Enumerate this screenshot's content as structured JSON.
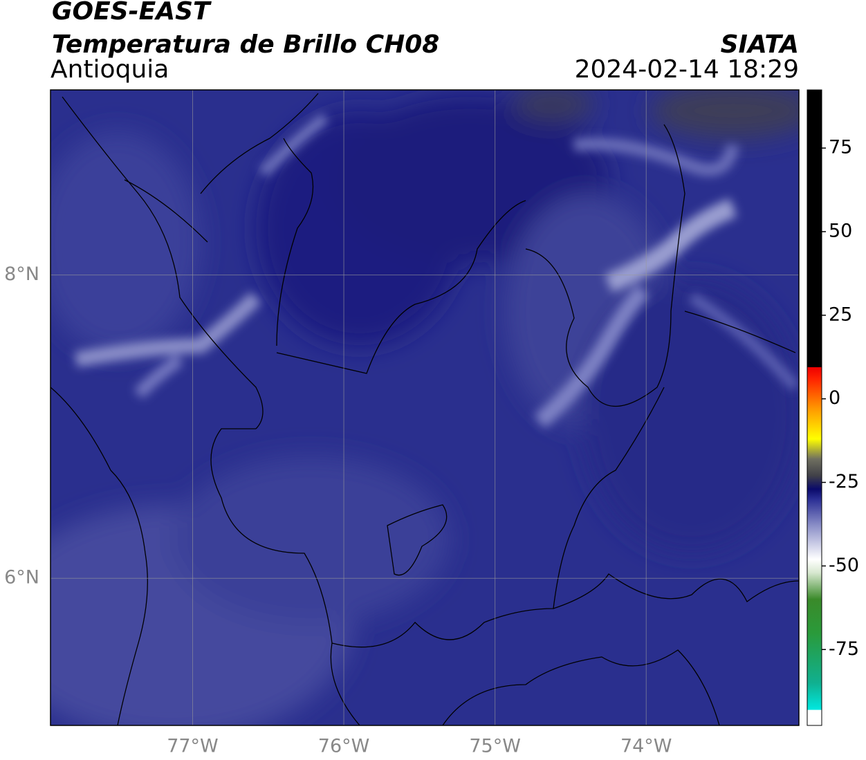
{
  "header": {
    "title": "GOES-EAST",
    "subtitle": "Temperatura de Brillo CH08",
    "region": "Antioquia",
    "source": "SIATA",
    "datetime": "2024-02-14 18:29"
  },
  "map": {
    "xlim": [
      -77.94,
      -72.99
    ],
    "ylim": [
      5.03,
      9.22
    ],
    "xticks": [
      {
        "value": -77,
        "label": "77°W"
      },
      {
        "value": -76,
        "label": "76°W"
      },
      {
        "value": -75,
        "label": "75°W"
      },
      {
        "value": -74,
        "label": "74°W"
      }
    ],
    "yticks": [
      {
        "value": 8,
        "label": "8°N"
      },
      {
        "value": 6,
        "label": "6°N"
      }
    ],
    "grid": true
  },
  "colorbar": {
    "clim": [
      -97.7,
      92.4
    ],
    "ticks": [
      75,
      50,
      25,
      0,
      -25,
      -50,
      -75
    ],
    "colormap": [
      {
        "value": -97.7,
        "color": "#ffffff"
      },
      {
        "value": -93.1,
        "color": "#ffffff"
      },
      {
        "value": -93,
        "color": "#00e8e0"
      },
      {
        "value": -85,
        "color": "#10b090"
      },
      {
        "value": -70,
        "color": "#2a9a3a"
      },
      {
        "value": -60,
        "color": "#3a8a2a"
      },
      {
        "value": -52,
        "color": "#d8e8d0"
      },
      {
        "value": -48,
        "color": "#ffffff"
      },
      {
        "value": -38,
        "color": "#8c90c8"
      },
      {
        "value": -30,
        "color": "#2a2e94"
      },
      {
        "value": -27,
        "color": "#0a0a6a"
      },
      {
        "value": -23,
        "color": "#404048"
      },
      {
        "value": -18,
        "color": "#707060"
      },
      {
        "value": -12,
        "color": "#ffff00"
      },
      {
        "value": -3,
        "color": "#ff9900"
      },
      {
        "value": 6,
        "color": "#ff2200"
      },
      {
        "value": 9.4,
        "color": "#ee0000"
      },
      {
        "value": 9.5,
        "color": "#000000"
      },
      {
        "value": 92.4,
        "color": "#000000"
      }
    ]
  }
}
